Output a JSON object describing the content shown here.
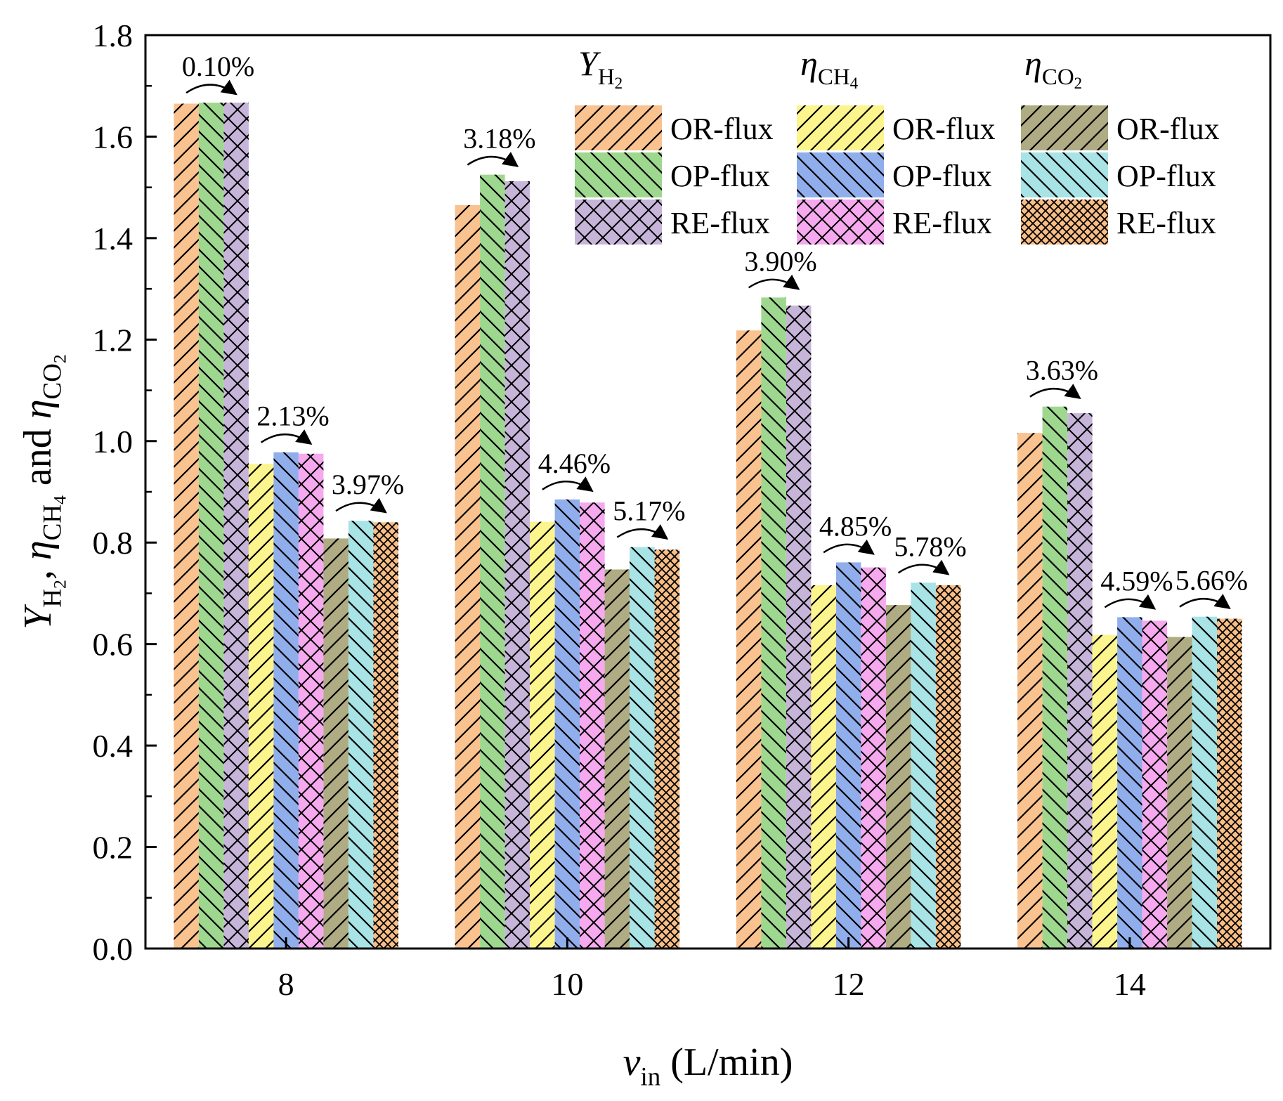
{
  "chart_data": {
    "type": "bar",
    "xlabel": "v_in (L/min)",
    "ylabel": "Y_H2, η_CH4 and η_CO2",
    "ylim": [
      0,
      1.8
    ],
    "yticks": [
      "0.0",
      "0.2",
      "0.4",
      "0.6",
      "0.8",
      "1.0",
      "1.2",
      "1.4",
      "1.6",
      "1.8"
    ],
    "categories": [
      "8",
      "10",
      "12",
      "14"
    ],
    "groups": [
      {
        "id": "Y",
        "title": "Y_H2"
      },
      {
        "id": "CH4",
        "title": "η_CH4"
      },
      {
        "id": "CO2",
        "title": "η_CO2"
      }
    ],
    "series": [
      {
        "group": "Y",
        "name": "OR-flux",
        "color": "#F9C28F",
        "pattern": "fwd",
        "values": [
          1.665,
          1.465,
          1.218,
          1.016
        ]
      },
      {
        "group": "Y",
        "name": "OP-flux",
        "color": "#9ED88F",
        "pattern": "back",
        "values": [
          1.667,
          1.525,
          1.283,
          1.068
        ]
      },
      {
        "group": "Y",
        "name": "RE-flux",
        "color": "#C6B5D8",
        "pattern": "cross",
        "values": [
          1.667,
          1.512,
          1.267,
          1.055
        ]
      },
      {
        "group": "CH4",
        "name": "OR-flux",
        "color": "#FCF58D",
        "pattern": "fwd",
        "values": [
          0.955,
          0.841,
          0.716,
          0.618
        ]
      },
      {
        "group": "CH4",
        "name": "OP-flux",
        "color": "#91AEEC",
        "pattern": "back",
        "values": [
          0.978,
          0.885,
          0.761,
          0.653
        ]
      },
      {
        "group": "CH4",
        "name": "RE-flux",
        "color": "#F6A9EE",
        "pattern": "cross",
        "values": [
          0.975,
          0.879,
          0.751,
          0.646
        ]
      },
      {
        "group": "CO2",
        "name": "OR-flux",
        "color": "#AFAC84",
        "pattern": "fwd",
        "values": [
          0.808,
          0.747,
          0.677,
          0.614
        ]
      },
      {
        "group": "CO2",
        "name": "OP-flux",
        "color": "#A8E3E6",
        "pattern": "back",
        "values": [
          0.843,
          0.791,
          0.721,
          0.654
        ]
      },
      {
        "group": "CO2",
        "name": "RE-flux",
        "color": "#F9BE86",
        "pattern": "dense",
        "values": [
          0.84,
          0.786,
          0.716,
          0.65
        ]
      }
    ],
    "annotations": [
      {
        "category": "8",
        "group": "Y",
        "text": "0.10%"
      },
      {
        "category": "8",
        "group": "CH4",
        "text": "2.13%"
      },
      {
        "category": "8",
        "group": "CO2",
        "text": "3.97%"
      },
      {
        "category": "10",
        "group": "Y",
        "text": "3.18%"
      },
      {
        "category": "10",
        "group": "CH4",
        "text": "4.46%"
      },
      {
        "category": "10",
        "group": "CO2",
        "text": "5.17%"
      },
      {
        "category": "12",
        "group": "Y",
        "text": "3.90%"
      },
      {
        "category": "12",
        "group": "CH4",
        "text": "4.85%"
      },
      {
        "category": "12",
        "group": "CO2",
        "text": "5.78%"
      },
      {
        "category": "14",
        "group": "Y",
        "text": "3.63%"
      },
      {
        "category": "14",
        "group": "CH4",
        "text": "4.59%"
      },
      {
        "category": "14",
        "group": "CO2",
        "text": "5.66%"
      }
    ],
    "legend": {
      "position": "top-right",
      "columns": [
        "Y_H2",
        "η_CH4",
        "η_CO2"
      ]
    }
  }
}
